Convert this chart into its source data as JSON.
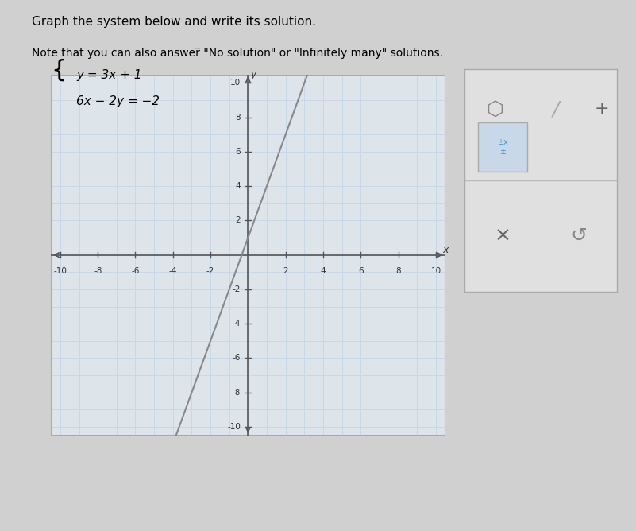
{
  "title_line1": "Graph the system below and write its solution.",
  "equation1": "y = 3x + 1",
  "equation2": "6x - 2y = -2",
  "note": "Note that you can also answer \"No solution\" or \"Infinitely many\" solutions.",
  "xlim": [
    -10,
    10
  ],
  "ylim": [
    -10,
    10
  ],
  "xticks": [
    -10,
    -8,
    -6,
    -4,
    -2,
    0,
    2,
    4,
    6,
    8,
    10
  ],
  "yticks": [
    -10,
    -8,
    -6,
    -4,
    -2,
    0,
    2,
    4,
    6,
    8,
    10
  ],
  "grid_color": "#c8d8e8",
  "grid_minor_color": "#dce8f0",
  "axis_color": "#555555",
  "line_color": "#888888",
  "background_color": "#e8ecf0",
  "plot_bg_color": "#dde4ea",
  "border_color": "#aaaaaa",
  "fig_bg_color": "#d0d0d0"
}
